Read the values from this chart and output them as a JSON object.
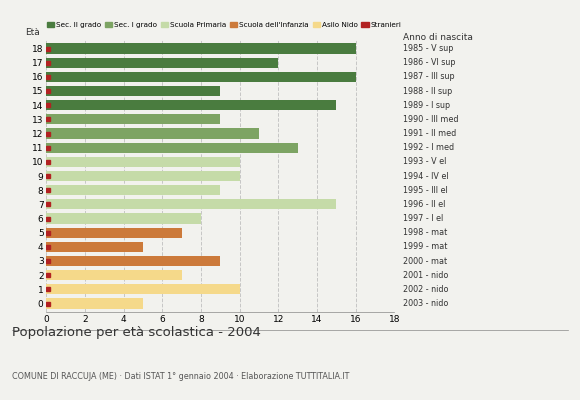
{
  "ages": [
    18,
    17,
    16,
    15,
    14,
    13,
    12,
    11,
    10,
    9,
    8,
    7,
    6,
    5,
    4,
    3,
    2,
    1,
    0
  ],
  "values": [
    16,
    12,
    16,
    9,
    15,
    9,
    11,
    13,
    10,
    10,
    9,
    15,
    8,
    7,
    5,
    9,
    7,
    10,
    5
  ],
  "colors": [
    "#4a7c3f",
    "#4a7c3f",
    "#4a7c3f",
    "#4a7c3f",
    "#4a7c3f",
    "#7da463",
    "#7da463",
    "#7da463",
    "#c5dba8",
    "#c5dba8",
    "#c5dba8",
    "#c5dba8",
    "#c5dba8",
    "#cc7a3a",
    "#cc7a3a",
    "#cc7a3a",
    "#f5d98a",
    "#f5d98a",
    "#f5d98a"
  ],
  "stranieri_color": "#b22222",
  "anno_nascita": [
    "1985 - V sup",
    "1986 - VI sup",
    "1987 - III sup",
    "1988 - II sup",
    "1989 - I sup",
    "1990 - III med",
    "1991 - II med",
    "1992 - I med",
    "1993 - V el",
    "1994 - IV el",
    "1995 - III el",
    "1996 - II el",
    "1997 - I el",
    "1998 - mat",
    "1999 - mat",
    "2000 - mat",
    "2001 - nido",
    "2002 - nido",
    "2003 - nido"
  ],
  "legend_labels": [
    "Sec. II grado",
    "Sec. I grado",
    "Scuola Primaria",
    "Scuola dell'Infanzia",
    "Asilo Nido",
    "Stranieri"
  ],
  "legend_colors": [
    "#4a7c3f",
    "#7da463",
    "#c5dba8",
    "#cc7a3a",
    "#f5d98a",
    "#b22222"
  ],
  "title": "Popolazione per età scolastica - 2004",
  "subtitle": "COMUNE DI RACCUJA (ME) · Dati ISTAT 1° gennaio 2004 · Elaborazione TUTTITALIA.IT",
  "xlabel_eta": "Età",
  "xlabel_anno": "Anno di nascita",
  "xlim": [
    0,
    18
  ],
  "background_color": "#f2f2ee",
  "bar_height": 0.72,
  "grid_color": "#bbbbbb"
}
